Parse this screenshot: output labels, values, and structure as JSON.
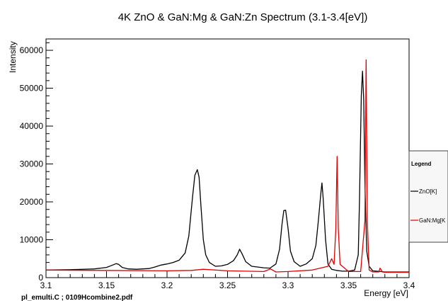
{
  "chart_data": {
    "type": "line",
    "title": "4K ZnO & GaN:Mg & GaN:Zn Spectrum (3.1-3.4[eV])",
    "xlabel": "Energy [eV]",
    "ylabel": "Intensity",
    "xlim": [
      3.1,
      3.4
    ],
    "ylim": [
      0,
      63000
    ],
    "x_ticks": [
      3.1,
      3.15,
      3.2,
      3.25,
      3.3,
      3.35,
      3.4
    ],
    "x_tick_labels": [
      "3.1",
      "3.15",
      "3.2",
      "3.25",
      "3.3",
      "3.35",
      "3.4"
    ],
    "y_ticks": [
      0,
      10000,
      20000,
      30000,
      40000,
      50000,
      60000
    ],
    "y_tick_labels": [
      "0",
      "10000",
      "20000",
      "30000",
      "40000",
      "50000",
      "60000"
    ],
    "grid": false,
    "legend": {
      "title": "Legend",
      "placement": "right",
      "entries": [
        "ZnO[K]",
        "GaN:Mg[K"
      ]
    },
    "series": [
      {
        "name": "ZnO[K]",
        "color": "#000000",
        "x": [
          3.1,
          3.12,
          3.14,
          3.15,
          3.155,
          3.158,
          3.16,
          3.163,
          3.168,
          3.175,
          3.185,
          3.19,
          3.195,
          3.2,
          3.205,
          3.21,
          3.215,
          3.218,
          3.221,
          3.223,
          3.225,
          3.2265,
          3.228,
          3.23,
          3.232,
          3.235,
          3.24,
          3.245,
          3.25,
          3.255,
          3.258,
          3.26,
          3.262,
          3.265,
          3.27,
          3.28,
          3.285,
          3.29,
          3.293,
          3.295,
          3.2965,
          3.298,
          3.3,
          3.302,
          3.305,
          3.31,
          3.315,
          3.32,
          3.323,
          3.325,
          3.327,
          3.328,
          3.329,
          3.331,
          3.333,
          3.336,
          3.34,
          3.345,
          3.35,
          3.355,
          3.358,
          3.359,
          3.3605,
          3.3615,
          3.3625,
          3.3635,
          3.365,
          3.367,
          3.37,
          3.38,
          3.39,
          3.4
        ],
        "y": [
          2000,
          2100,
          2300,
          2700,
          3300,
          3700,
          3500,
          2700,
          2300,
          2200,
          2400,
          2800,
          3300,
          3600,
          4000,
          4600,
          6500,
          11000,
          21000,
          27000,
          28500,
          26500,
          19000,
          10000,
          6000,
          4000,
          3000,
          3100,
          3500,
          4500,
          6000,
          7500,
          6300,
          4200,
          3000,
          2600,
          2500,
          3600,
          7500,
          14000,
          17700,
          17800,
          13000,
          7000,
          4200,
          3000,
          3600,
          5000,
          8500,
          15000,
          22000,
          25000,
          21000,
          10000,
          3600,
          2200,
          1900,
          1700,
          1700,
          2000,
          6000,
          20000,
          48000,
          54500,
          47000,
          25000,
          7000,
          3000,
          1800,
          1500,
          1500,
          1500
        ]
      },
      {
        "name": "GaN:Mg[K",
        "color": "#e00000",
        "x": [
          3.1,
          3.15,
          3.2,
          3.22,
          3.23,
          3.25,
          3.28,
          3.2855,
          3.29,
          3.3,
          3.32,
          3.333,
          3.336,
          3.338,
          3.3395,
          3.3405,
          3.3415,
          3.343,
          3.35,
          3.36,
          3.3635,
          3.3645,
          3.3655,
          3.367,
          3.37,
          3.375,
          3.376,
          3.378,
          3.38,
          3.4
        ],
        "y": [
          2000,
          1900,
          1800,
          1900,
          2200,
          1800,
          1600,
          2300,
          1500,
          1600,
          2000,
          3000,
          5000,
          3500,
          13000,
          32000,
          13000,
          3500,
          1600,
          1600,
          15000,
          57500,
          15000,
          2000,
          1500,
          1500,
          2500,
          1500,
          1400,
          1400
        ]
      }
    ]
  },
  "footer": "pl_emulti.C ; 0109Hcombine2.pdf"
}
